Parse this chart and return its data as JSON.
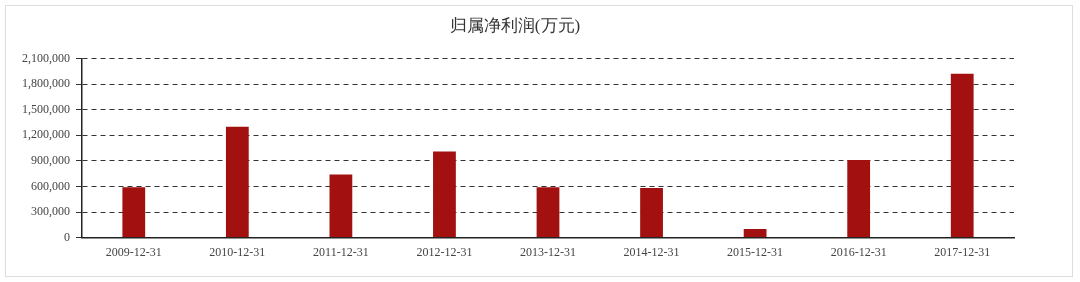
{
  "chart_data": {
    "type": "bar",
    "title": "归属净利润(万元)",
    "categories": [
      "2009-12-31",
      "2010-12-31",
      "2011-12-31",
      "2012-12-31",
      "2013-12-31",
      "2014-12-31",
      "2015-12-31",
      "2016-12-31",
      "2017-12-31"
    ],
    "values": [
      590000,
      1300000,
      740000,
      1010000,
      590000,
      580000,
      100000,
      910000,
      1920000
    ],
    "color": "#a31010",
    "ylim": [
      0,
      2100000
    ],
    "yticks": [
      0,
      {
        "value": 300000,
        "label": "300,000"
      },
      {
        "value": 600000,
        "label": "600,000"
      },
      {
        "value": 900000,
        "label": "900,000"
      },
      {
        "value": 1200000,
        "label": "1,200,000"
      },
      {
        "value": 1500000,
        "label": "1,500,000"
      },
      {
        "value": 1800000,
        "label": "1,800,000"
      },
      {
        "value": 2100000,
        "label": "2,100,000"
      }
    ],
    "grid": "y",
    "legend": false
  }
}
